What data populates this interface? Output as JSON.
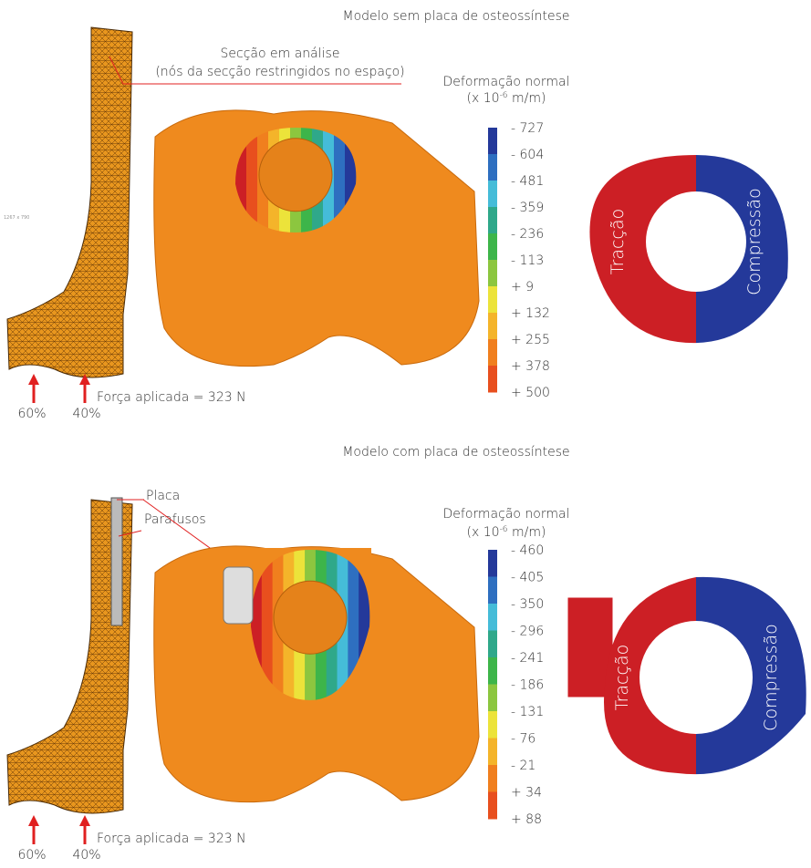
{
  "scale_note": "1267 x 790",
  "panels": [
    {
      "title": "Modelo sem placa de osteossíntese",
      "section_label": "Secção em análise",
      "section_note": "(nós da secção restringidos no espaço)",
      "force_label": "Força aplicada = 323 N",
      "force_split": [
        "60%",
        "40%"
      ],
      "legend_title": "Deformação normal",
      "legend_unit": [
        "(x 10",
        "-6",
        " m/m)"
      ],
      "legend_labels": [
        "- 727",
        "- 604",
        "- 481",
        "- 359",
        "- 236",
        "- 113",
        "+ 9",
        "+ 132",
        "+ 255",
        "+ 378",
        "+ 500"
      ],
      "tension_label": "Tracção",
      "compression_label": "Compressão"
    },
    {
      "title": "Modelo com placa de osteossíntese",
      "plate_label": "Placa",
      "screws_label": "Parafusos",
      "force_label": "Força aplicada = 323 N",
      "force_split": [
        "60%",
        "40%"
      ],
      "legend_title": "Deformação normal",
      "legend_unit": [
        "(x 10",
        "-6",
        " m/m)"
      ],
      "legend_labels": [
        "- 460",
        "- 405",
        "- 350",
        "- 296",
        "- 241",
        "- 186",
        "- 131",
        "- 76",
        "- 21",
        "+ 34",
        "+ 88"
      ],
      "tension_label": "Tracção",
      "compression_label": "Compressão"
    }
  ]
}
